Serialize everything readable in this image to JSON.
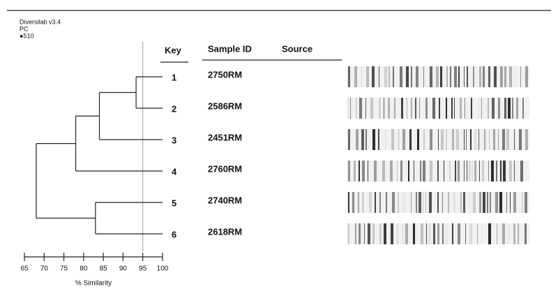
{
  "chart_data": {
    "type": "dendrogram",
    "header_lines": [
      "Diversilab v3.4",
      "PC",
      "●510"
    ],
    "columns": [
      "Key",
      "Sample ID",
      "Source"
    ],
    "x_label": "% Similarity",
    "xlim": [
      65,
      100
    ],
    "xticks": [
      65,
      70,
      75,
      80,
      85,
      90,
      95,
      100
    ],
    "reference_line": 95,
    "tree": {
      "similarity": 68,
      "children": [
        {
          "similarity": 78,
          "children": [
            {
              "similarity": 84,
              "children": [
                {
                  "similarity": 93.3,
                  "children": [
                    {
                      "key": "1",
                      "sample_id": "2750RM"
                    },
                    {
                      "key": "2",
                      "sample_id": "2586RM"
                    }
                  ]
                },
                {
                  "key": "3",
                  "sample_id": "2451RM"
                }
              ]
            },
            {
              "key": "4",
              "sample_id": "2760RM"
            }
          ]
        },
        {
          "similarity": 83,
          "children": [
            {
              "key": "5",
              "sample_id": "2740RM"
            },
            {
              "key": "6",
              "sample_id": "2618RM"
            }
          ]
        }
      ]
    }
  }
}
